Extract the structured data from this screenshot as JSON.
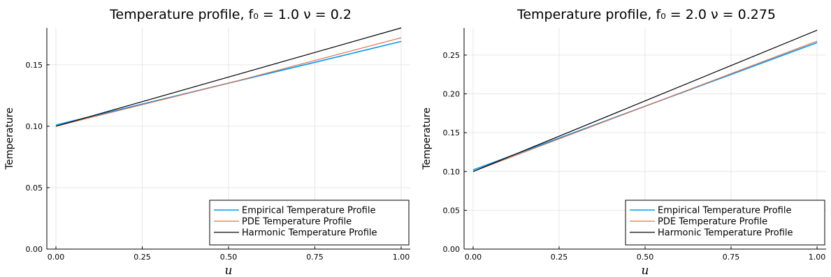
{
  "chart_data": [
    {
      "type": "line",
      "title": "Temperature profile, f₀ = 1.0 ν = 0.2",
      "xlabel": "u",
      "ylabel": "Temperature",
      "xlim": [
        0.0,
        1.0
      ],
      "ylim": [
        0.0,
        0.18
      ],
      "xticks": [
        0.0,
        0.25,
        0.5,
        0.75,
        1.0
      ],
      "xtick_labels": [
        "0.00",
        "0.25",
        "0.50",
        "0.75",
        "1.00"
      ],
      "yticks": [
        0.0,
        0.05,
        0.1,
        0.15
      ],
      "ytick_labels": [
        "0.00",
        "0.05",
        "0.10",
        "0.15"
      ],
      "grid": true,
      "legend_position": "bottom-right",
      "x": [
        0.0,
        0.25,
        0.5,
        0.75,
        1.0
      ],
      "series": [
        {
          "name": "Empirical Temperature Profile",
          "color": "#009AFA",
          "values": [
            0.101,
            0.118,
            0.135,
            0.152,
            0.169
          ]
        },
        {
          "name": "PDE Temperature Profile",
          "color": "#E26F46",
          "values": [
            0.1,
            0.1175,
            0.135,
            0.1535,
            0.172
          ]
        },
        {
          "name": "Harmonic Temperature Profile",
          "color": "#000000",
          "values": [
            0.1,
            0.12,
            0.14,
            0.16,
            0.18
          ]
        }
      ]
    },
    {
      "type": "line",
      "title": "Temperature profile, f₀ = 2.0 ν = 0.275",
      "xlabel": "u",
      "ylabel": "Temperature",
      "xlim": [
        0.0,
        1.0
      ],
      "ylim": [
        0.0,
        0.285
      ],
      "xticks": [
        0.0,
        0.25,
        0.5,
        0.75,
        1.0
      ],
      "xtick_labels": [
        "0.00",
        "0.25",
        "0.50",
        "0.75",
        "1.00"
      ],
      "yticks": [
        0.0,
        0.05,
        0.1,
        0.15,
        0.2,
        0.25
      ],
      "ytick_labels": [
        "0.00",
        "0.05",
        "0.10",
        "0.15",
        "0.20",
        "0.25"
      ],
      "grid": true,
      "legend_position": "bottom-right",
      "x": [
        0.0,
        0.25,
        0.5,
        0.75,
        1.0
      ],
      "series": [
        {
          "name": "Empirical Temperature Profile",
          "color": "#009AFA",
          "values": [
            0.102,
            0.143,
            0.184,
            0.225,
            0.266
          ]
        },
        {
          "name": "PDE Temperature Profile",
          "color": "#E26F46",
          "values": [
            0.1,
            0.142,
            0.184,
            0.226,
            0.268
          ]
        },
        {
          "name": "Harmonic Temperature Profile",
          "color": "#000000",
          "values": [
            0.1,
            0.1455,
            0.191,
            0.2365,
            0.282
          ]
        }
      ]
    }
  ]
}
